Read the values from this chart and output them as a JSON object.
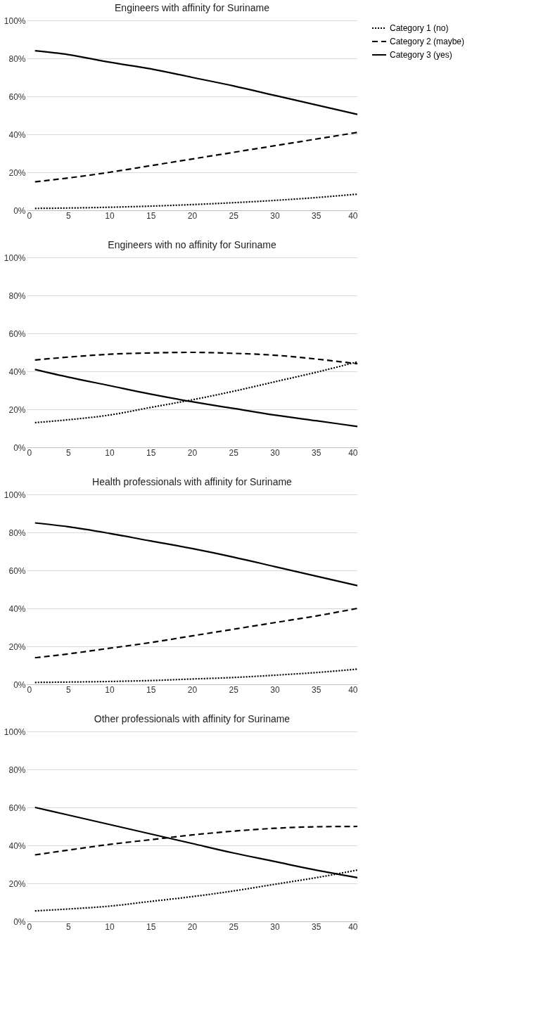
{
  "chart_data": [
    {
      "type": "line",
      "title": "Engineers with affinity for Suriname",
      "x": [
        1,
        5,
        10,
        15,
        20,
        25,
        30,
        35,
        40
      ],
      "xlim": [
        0,
        40
      ],
      "xticks": [
        0,
        5,
        10,
        15,
        20,
        25,
        30,
        35,
        40
      ],
      "ylim": [
        0,
        100
      ],
      "yticks": [
        {
          "value": 0,
          "label": "0%"
        },
        {
          "value": 20,
          "label": "20%"
        },
        {
          "value": 40,
          "label": "40%"
        },
        {
          "value": 60,
          "label": "60%"
        },
        {
          "value": 80,
          "label": "80%"
        },
        {
          "value": 100,
          "label": "100%"
        }
      ],
      "grid": "y",
      "legend": "right",
      "marker": "none",
      "series": [
        {
          "name": "Category 1 (no)",
          "color": "#000000",
          "line_style": "dotted",
          "values": [
            1,
            1.2,
            1.6,
            2.2,
            3,
            4,
            5.2,
            6.7,
            8.5
          ]
        },
        {
          "name": "Category 2 (maybe)",
          "color": "#000000",
          "line_style": "dashed",
          "values": [
            15,
            17,
            20,
            23.5,
            27,
            30.5,
            34,
            37.5,
            41
          ]
        },
        {
          "name": "Category 3 (yes)",
          "color": "#000000",
          "line_style": "solid",
          "values": [
            84,
            82,
            78,
            74.5,
            70,
            65.5,
            60.5,
            55.5,
            50.5
          ]
        }
      ]
    },
    {
      "type": "line",
      "title": "Engineers with no affinity for Suriname",
      "x": [
        1,
        5,
        10,
        15,
        20,
        25,
        30,
        35,
        40
      ],
      "xlim": [
        0,
        40
      ],
      "xticks": [
        0,
        5,
        10,
        15,
        20,
        25,
        30,
        35,
        40
      ],
      "ylim": [
        0,
        100
      ],
      "yticks": [
        {
          "value": 0,
          "label": "0%"
        },
        {
          "value": 20,
          "label": "20%"
        },
        {
          "value": 40,
          "label": "40%"
        },
        {
          "value": 60,
          "label": "60%"
        },
        {
          "value": 80,
          "label": "80%"
        },
        {
          "value": 100,
          "label": "100%"
        }
      ],
      "grid": "y",
      "legend": "right",
      "marker": "none",
      "series": [
        {
          "name": "Category 1 (no)",
          "color": "#000000",
          "line_style": "dotted",
          "values": [
            13,
            14.5,
            17,
            21,
            25,
            29.5,
            34.5,
            39.5,
            45
          ]
        },
        {
          "name": "Category 2 (maybe)",
          "color": "#000000",
          "line_style": "dashed",
          "values": [
            46,
            47.5,
            49,
            49.7,
            50,
            49.5,
            48.5,
            46.5,
            44
          ]
        },
        {
          "name": "Category 3 (yes)",
          "color": "#000000",
          "line_style": "solid",
          "values": [
            41,
            37,
            32.5,
            28,
            24,
            20.5,
            17,
            14,
            11
          ]
        }
      ]
    },
    {
      "type": "line",
      "title": "Health professionals with affinity for Suriname",
      "x": [
        1,
        5,
        10,
        15,
        20,
        25,
        30,
        35,
        40
      ],
      "xlim": [
        0,
        40
      ],
      "xticks": [
        0,
        5,
        10,
        15,
        20,
        25,
        30,
        35,
        40
      ],
      "ylim": [
        0,
        100
      ],
      "yticks": [
        {
          "value": 0,
          "label": "0%"
        },
        {
          "value": 20,
          "label": "20%"
        },
        {
          "value": 40,
          "label": "40%"
        },
        {
          "value": 60,
          "label": "60%"
        },
        {
          "value": 80,
          "label": "80%"
        },
        {
          "value": 100,
          "label": "100%"
        }
      ],
      "grid": "y",
      "legend": "right",
      "marker": "none",
      "series": [
        {
          "name": "Category 1 (no)",
          "color": "#000000",
          "line_style": "dotted",
          "values": [
            1,
            1.2,
            1.5,
            2,
            2.8,
            3.6,
            4.8,
            6.2,
            8
          ]
        },
        {
          "name": "Category 2 (maybe)",
          "color": "#000000",
          "line_style": "dashed",
          "values": [
            14,
            16,
            19,
            22,
            25.5,
            29,
            32.5,
            36,
            40
          ]
        },
        {
          "name": "Category 3 (yes)",
          "color": "#000000",
          "line_style": "solid",
          "values": [
            85,
            83,
            79.5,
            75.5,
            71.5,
            67,
            62,
            57,
            52
          ]
        }
      ]
    },
    {
      "type": "line",
      "title": "Other professionals with affinity for Suriname",
      "x": [
        1,
        5,
        10,
        15,
        20,
        25,
        30,
        35,
        40
      ],
      "xlim": [
        0,
        40
      ],
      "xticks": [
        0,
        5,
        10,
        15,
        20,
        25,
        30,
        35,
        40
      ],
      "ylim": [
        0,
        100
      ],
      "yticks": [
        {
          "value": 0,
          "label": "0%"
        },
        {
          "value": 20,
          "label": "20%"
        },
        {
          "value": 40,
          "label": "40%"
        },
        {
          "value": 60,
          "label": "60%"
        },
        {
          "value": 80,
          "label": "80%"
        },
        {
          "value": 100,
          "label": "100%"
        }
      ],
      "grid": "y",
      "legend": "right",
      "marker": "none",
      "series": [
        {
          "name": "Category 1 (no)",
          "color": "#000000",
          "line_style": "dotted",
          "values": [
            5.5,
            6.5,
            8,
            10.5,
            13,
            16,
            19.5,
            23,
            27
          ]
        },
        {
          "name": "Category 2 (maybe)",
          "color": "#000000",
          "line_style": "dashed",
          "values": [
            35,
            37.5,
            40.5,
            43,
            45.5,
            47.5,
            49,
            49.8,
            50
          ]
        },
        {
          "name": "Category 3 (yes)",
          "color": "#000000",
          "line_style": "solid",
          "values": [
            60,
            56,
            51,
            46,
            41,
            36,
            31.5,
            27,
            23
          ]
        }
      ]
    }
  ]
}
